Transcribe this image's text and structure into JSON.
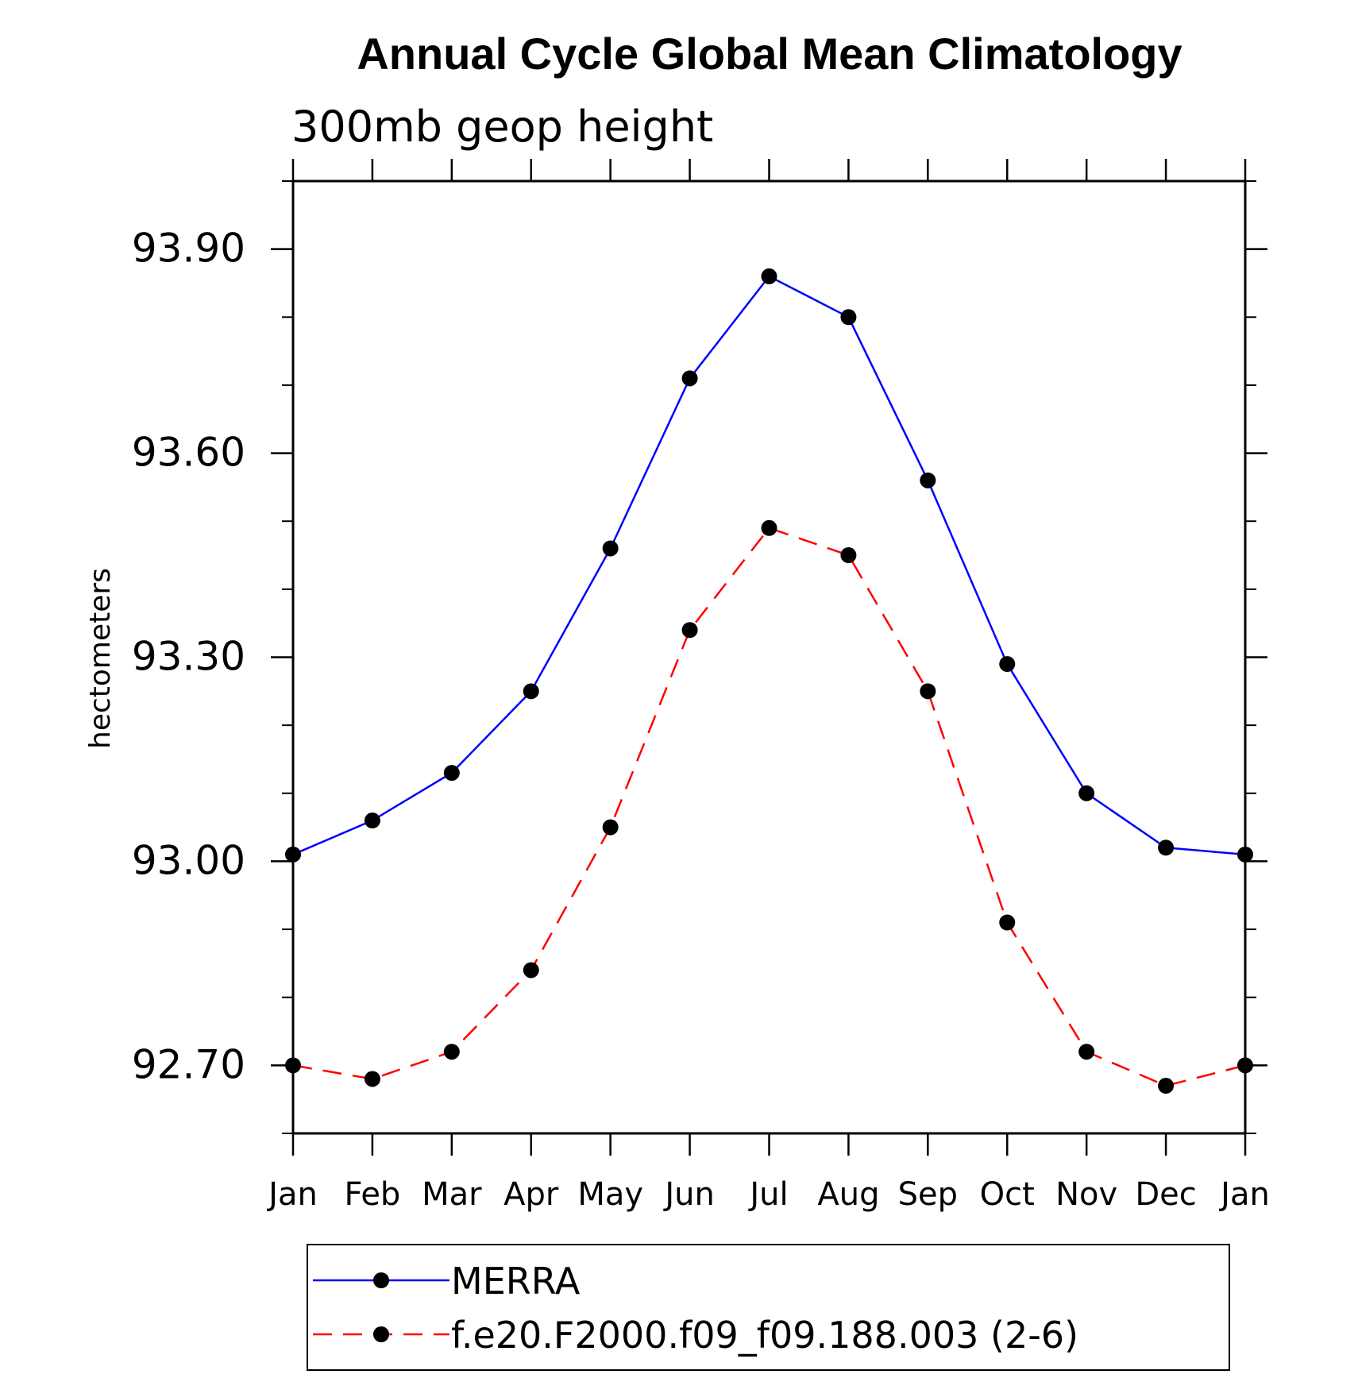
{
  "chart_data": {
    "type": "line",
    "title": "Annual Cycle Global Mean Climatology",
    "subtitle": "300mb geop height",
    "ylabel": "hectometers",
    "xlabel": "",
    "categories": [
      "Jan",
      "Feb",
      "Mar",
      "Apr",
      "May",
      "Jun",
      "Jul",
      "Aug",
      "Sep",
      "Oct",
      "Nov",
      "Dec",
      "Jan"
    ],
    "ylim": [
      92.6,
      94.0
    ],
    "yticks": [
      "93.90",
      "93.60",
      "93.30",
      "93.00",
      "92.70"
    ],
    "ytick_values": [
      93.9,
      93.6,
      93.3,
      93.0,
      92.7
    ],
    "yminor_step": 0.1,
    "legend_position": "bottom",
    "grid": false,
    "series": [
      {
        "name": "MERRA",
        "color": "#0000ff",
        "line_style": "solid",
        "marker": "filled-circle",
        "values": [
          93.01,
          93.06,
          93.13,
          93.25,
          93.46,
          93.71,
          93.86,
          93.8,
          93.56,
          93.29,
          93.1,
          93.02,
          93.01
        ]
      },
      {
        "name": "f.e20.F2000.f09_f09.188.003 (2-6)",
        "color": "#ff0000",
        "line_style": "dashed",
        "marker": "filled-circle",
        "values": [
          92.7,
          92.68,
          92.72,
          92.84,
          93.05,
          93.34,
          93.49,
          93.45,
          93.25,
          92.91,
          92.72,
          92.67,
          92.7
        ]
      }
    ]
  }
}
